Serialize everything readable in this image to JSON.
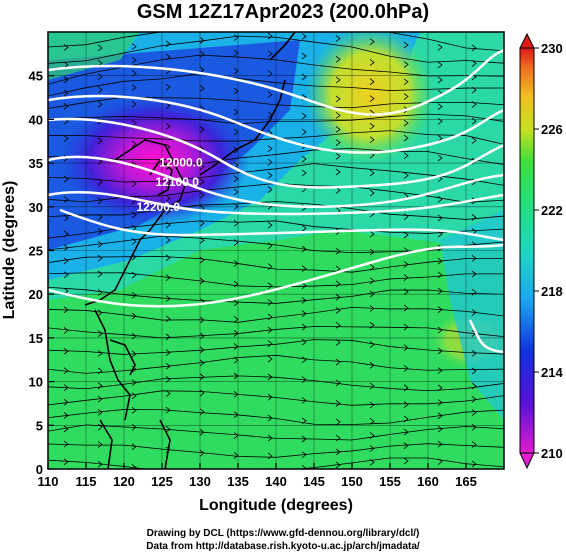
{
  "title": "GSM 12Z17Apr2023 (200.0hPa)",
  "map": {
    "lon_range": [
      110,
      170
    ],
    "lat_range": [
      0,
      50
    ],
    "x_ticks": [
      110,
      115,
      120,
      125,
      130,
      135,
      140,
      145,
      150,
      155,
      160,
      165
    ],
    "y_ticks": [
      0,
      5,
      10,
      15,
      20,
      25,
      30,
      35,
      40,
      45
    ],
    "xlabel": "Longitude (degrees)",
    "ylabel": "Latitude  (degrees)",
    "contours": [
      {
        "label": "12000.0",
        "lon": 127.5,
        "lat": 34.6
      },
      {
        "label": "12100.0",
        "lon": 127.0,
        "lat": 32.4
      },
      {
        "label": "12200.0",
        "lon": 124.5,
        "lat": 29.5
      }
    ]
  },
  "colorbar": {
    "min": 210,
    "max": 230,
    "ticks": [
      "230",
      "226",
      "222",
      "218",
      "214",
      "210"
    ],
    "tick_values": [
      230,
      226,
      222,
      218,
      214,
      210
    ]
  },
  "credits": {
    "line1": "Drawing by DCL (https://www.gfd-dennou.org/library/dcl/)",
    "line2": "Data from http://database.rish.kyoto-u.ac.jp/arch/jmadata/"
  }
}
